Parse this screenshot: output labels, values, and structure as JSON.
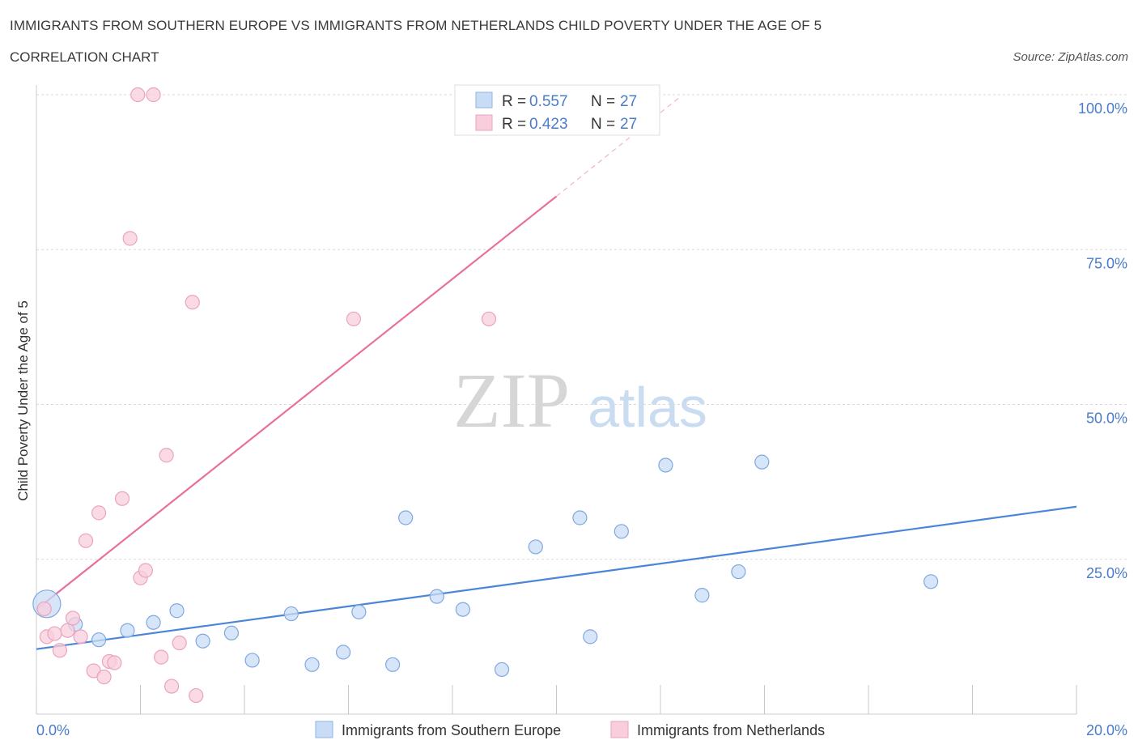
{
  "header": {
    "title": "IMMIGRANTS FROM SOUTHERN EUROPE VS IMMIGRANTS FROM NETHERLANDS CHILD POVERTY UNDER THE AGE OF 5",
    "subtitle": "CORRELATION CHART",
    "source": "Source: ZipAtlas.com"
  },
  "watermark": {
    "zip": "ZIP",
    "atlas": "atlas"
  },
  "legend_top": {
    "rows": [
      {
        "r_label": "R = ",
        "r_value": "0.557",
        "n_label": "N = ",
        "n_value": "27"
      },
      {
        "r_label": "R = ",
        "r_value": "0.423",
        "n_label": "N = ",
        "n_value": "27"
      }
    ]
  },
  "chart_data": {
    "type": "scatter",
    "title": "IMMIGRANTS FROM SOUTHERN EUROPE VS IMMIGRANTS FROM NETHERLANDS CHILD POVERTY UNDER THE AGE OF 5",
    "xlabel": "",
    "ylabel": "Child Poverty Under the Age of 5",
    "xlim": [
      0,
      20
    ],
    "ylim": [
      0,
      100
    ],
    "x_tick_labels": [
      "0.0%",
      "20.0%"
    ],
    "y_tick_labels": [
      "100.0%",
      "75.0%",
      "50.0%",
      "25.0%"
    ],
    "y_tick_values": [
      100,
      75,
      50,
      25
    ],
    "grid": true,
    "legend_position": "bottom",
    "colors": {
      "southern_europe": "#4a86d8",
      "netherlands": "#e8709a",
      "southern_europe_fill": "#c9dcf5",
      "netherlands_fill": "#f8cedc",
      "axis_text": "#4a7cc9"
    },
    "series": [
      {
        "name": "Immigrants from Southern Europe",
        "points": [
          {
            "x": 0.2,
            "y": 17.8,
            "large": true
          },
          {
            "x": 0.75,
            "y": 14.5
          },
          {
            "x": 1.2,
            "y": 12.0
          },
          {
            "x": 1.75,
            "y": 13.5
          },
          {
            "x": 2.25,
            "y": 14.8
          },
          {
            "x": 2.7,
            "y": 16.7
          },
          {
            "x": 3.2,
            "y": 11.8
          },
          {
            "x": 3.75,
            "y": 13.1
          },
          {
            "x": 4.15,
            "y": 8.7
          },
          {
            "x": 4.9,
            "y": 16.2
          },
          {
            "x": 5.3,
            "y": 8.0
          },
          {
            "x": 5.9,
            "y": 10.0
          },
          {
            "x": 6.2,
            "y": 16.5
          },
          {
            "x": 6.85,
            "y": 8.0
          },
          {
            "x": 7.1,
            "y": 31.7
          },
          {
            "x": 7.7,
            "y": 19.0
          },
          {
            "x": 8.2,
            "y": 16.9
          },
          {
            "x": 8.95,
            "y": 7.2
          },
          {
            "x": 9.6,
            "y": 27.0
          },
          {
            "x": 10.45,
            "y": 31.7
          },
          {
            "x": 10.65,
            "y": 12.5
          },
          {
            "x": 11.25,
            "y": 29.5
          },
          {
            "x": 12.1,
            "y": 40.2
          },
          {
            "x": 12.8,
            "y": 19.2
          },
          {
            "x": 13.5,
            "y": 23.0
          },
          {
            "x": 13.95,
            "y": 40.7
          },
          {
            "x": 17.2,
            "y": 21.4
          }
        ],
        "trend": {
          "x1": 0,
          "y1": 10.5,
          "x2": 20,
          "y2": 33.5
        }
      },
      {
        "name": "Immigrants from Netherlands",
        "points": [
          {
            "x": 0.15,
            "y": 17.0
          },
          {
            "x": 0.2,
            "y": 12.5
          },
          {
            "x": 0.35,
            "y": 13.0
          },
          {
            "x": 0.45,
            "y": 10.3
          },
          {
            "x": 0.6,
            "y": 13.5
          },
          {
            "x": 0.7,
            "y": 15.5
          },
          {
            "x": 0.85,
            "y": 12.5
          },
          {
            "x": 0.95,
            "y": 28.0
          },
          {
            "x": 1.1,
            "y": 7.0
          },
          {
            "x": 1.2,
            "y": 32.5
          },
          {
            "x": 1.3,
            "y": 6.0
          },
          {
            "x": 1.4,
            "y": 8.5
          },
          {
            "x": 1.5,
            "y": 8.3
          },
          {
            "x": 1.65,
            "y": 34.8
          },
          {
            "x": 1.8,
            "y": 76.8
          },
          {
            "x": 1.95,
            "y": 100.0
          },
          {
            "x": 2.0,
            "y": 22.0
          },
          {
            "x": 2.1,
            "y": 23.2
          },
          {
            "x": 2.25,
            "y": 100.0
          },
          {
            "x": 2.4,
            "y": 9.2
          },
          {
            "x": 2.5,
            "y": 41.8
          },
          {
            "x": 2.6,
            "y": 4.5
          },
          {
            "x": 2.75,
            "y": 11.5
          },
          {
            "x": 3.0,
            "y": 66.5
          },
          {
            "x": 3.07,
            "y": 3.0
          },
          {
            "x": 6.1,
            "y": 63.8
          },
          {
            "x": 8.7,
            "y": 63.8
          }
        ],
        "trend": {
          "x1": 0,
          "y1": 16.9,
          "x2": 10.0,
          "y2": 83.6
        },
        "trend_dashed": {
          "x1": 10.0,
          "y1": 83.6,
          "x2": 12.4,
          "y2": 99.8
        }
      }
    ]
  },
  "bottom_legend": {
    "items": [
      {
        "label": "Immigrants from Southern Europe"
      },
      {
        "label": "Immigrants from Netherlands"
      }
    ]
  }
}
